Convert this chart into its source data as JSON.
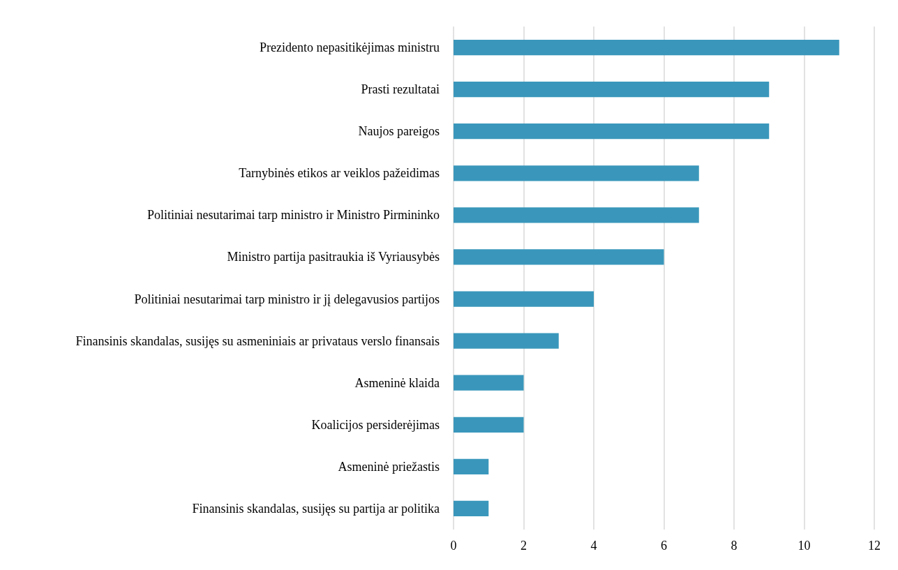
{
  "chart_data": {
    "type": "bar",
    "orientation": "horizontal",
    "categories": [
      "Prezidento nepasitikėjimas ministru",
      "Prasti rezultatai",
      "Naujos pareigos",
      "Tarnybinės etikos ar veiklos pažeidimas",
      "Politiniai nesutarimai tarp ministro ir Ministro Pirmininko",
      "Ministro partija pasitraukia iš Vyriausybės",
      "Politiniai nesutarimai tarp ministro ir jį delegavusios partijos",
      "Finansinis skandalas, susijęs su asmeniniais ar privataus verslo finansais",
      "Asmeninė klaida",
      "Koalicijos persiderėjimas",
      "Asmeninė priežastis",
      "Finansinis skandalas, susijęs su partija ar politika"
    ],
    "values": [
      11,
      9,
      9,
      7,
      7,
      6,
      4,
      3,
      2,
      2,
      1,
      1
    ],
    "color": "#3a97bb",
    "xlim": [
      0,
      12
    ],
    "xticks": [
      0,
      2,
      4,
      6,
      8,
      10,
      12
    ],
    "grid": "x"
  }
}
